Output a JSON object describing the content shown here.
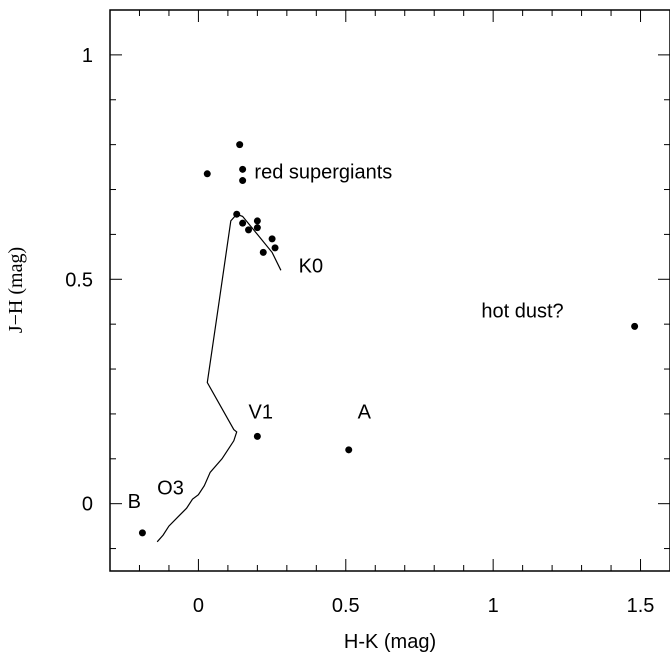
{
  "chart_data": {
    "type": "scatter",
    "xlabel": "H-K (mag)",
    "ylabel": "J−H (mag)",
    "xlim": [
      -0.3,
      1.6
    ],
    "ylim": [
      -0.15,
      1.1
    ],
    "x_ticks": [
      {
        "value": 0,
        "label": "0"
      },
      {
        "value": 0.5,
        "label": "0.5"
      },
      {
        "value": 1,
        "label": "1"
      },
      {
        "value": 1.5,
        "label": "1.5"
      }
    ],
    "y_ticks": [
      {
        "value": 0,
        "label": "0"
      },
      {
        "value": 0.5,
        "label": "0.5"
      },
      {
        "value": 1,
        "label": "1"
      }
    ],
    "x_minor_step": 0.1,
    "y_minor_step": 0.1,
    "grid": false,
    "legend": "none",
    "marker_color": "#000000",
    "line_color": "#000000",
    "points": [
      {
        "x": 0.14,
        "y": 0.8
      },
      {
        "x": 0.03,
        "y": 0.735
      },
      {
        "x": 0.15,
        "y": 0.745
      },
      {
        "x": 0.15,
        "y": 0.72
      },
      {
        "x": 0.13,
        "y": 0.645
      },
      {
        "x": 0.15,
        "y": 0.625
      },
      {
        "x": 0.17,
        "y": 0.61
      },
      {
        "x": 0.2,
        "y": 0.63
      },
      {
        "x": 0.2,
        "y": 0.615
      },
      {
        "x": 0.25,
        "y": 0.59
      },
      {
        "x": 0.26,
        "y": 0.57
      },
      {
        "x": 0.22,
        "y": 0.56
      },
      {
        "x": 0.2,
        "y": 0.15
      },
      {
        "x": 0.51,
        "y": 0.12
      },
      {
        "x": -0.19,
        "y": -0.065
      },
      {
        "x": 1.48,
        "y": 0.395
      }
    ],
    "sequence_line": [
      [
        -0.14,
        -0.085
      ],
      [
        -0.12,
        -0.07
      ],
      [
        -0.1,
        -0.05
      ],
      [
        -0.07,
        -0.03
      ],
      [
        -0.04,
        -0.01
      ],
      [
        -0.02,
        0.01
      ],
      [
        0.0,
        0.02
      ],
      [
        0.02,
        0.04
      ],
      [
        0.04,
        0.07
      ],
      [
        0.08,
        0.1
      ],
      [
        0.1,
        0.12
      ],
      [
        0.12,
        0.14
      ],
      [
        0.13,
        0.16
      ],
      [
        0.12,
        0.165
      ],
      [
        0.03,
        0.27
      ],
      [
        0.07,
        0.45
      ],
      [
        0.11,
        0.63
      ],
      [
        0.13,
        0.645
      ],
      [
        0.15,
        0.64
      ],
      [
        0.2,
        0.6
      ],
      [
        0.25,
        0.56
      ],
      [
        0.28,
        0.52
      ]
    ],
    "annotations": [
      {
        "text": "red supergiants",
        "x": 0.19,
        "y": 0.725
      },
      {
        "text": "K0",
        "x": 0.34,
        "y": 0.515
      },
      {
        "text": "hot dust?",
        "x": 0.96,
        "y": 0.415
      },
      {
        "text": "V1",
        "x": 0.17,
        "y": 0.19
      },
      {
        "text": "A",
        "x": 0.54,
        "y": 0.19
      },
      {
        "text": "B",
        "x": -0.24,
        "y": -0.01
      },
      {
        "text": "O3",
        "x": -0.14,
        "y": 0.02
      }
    ]
  }
}
